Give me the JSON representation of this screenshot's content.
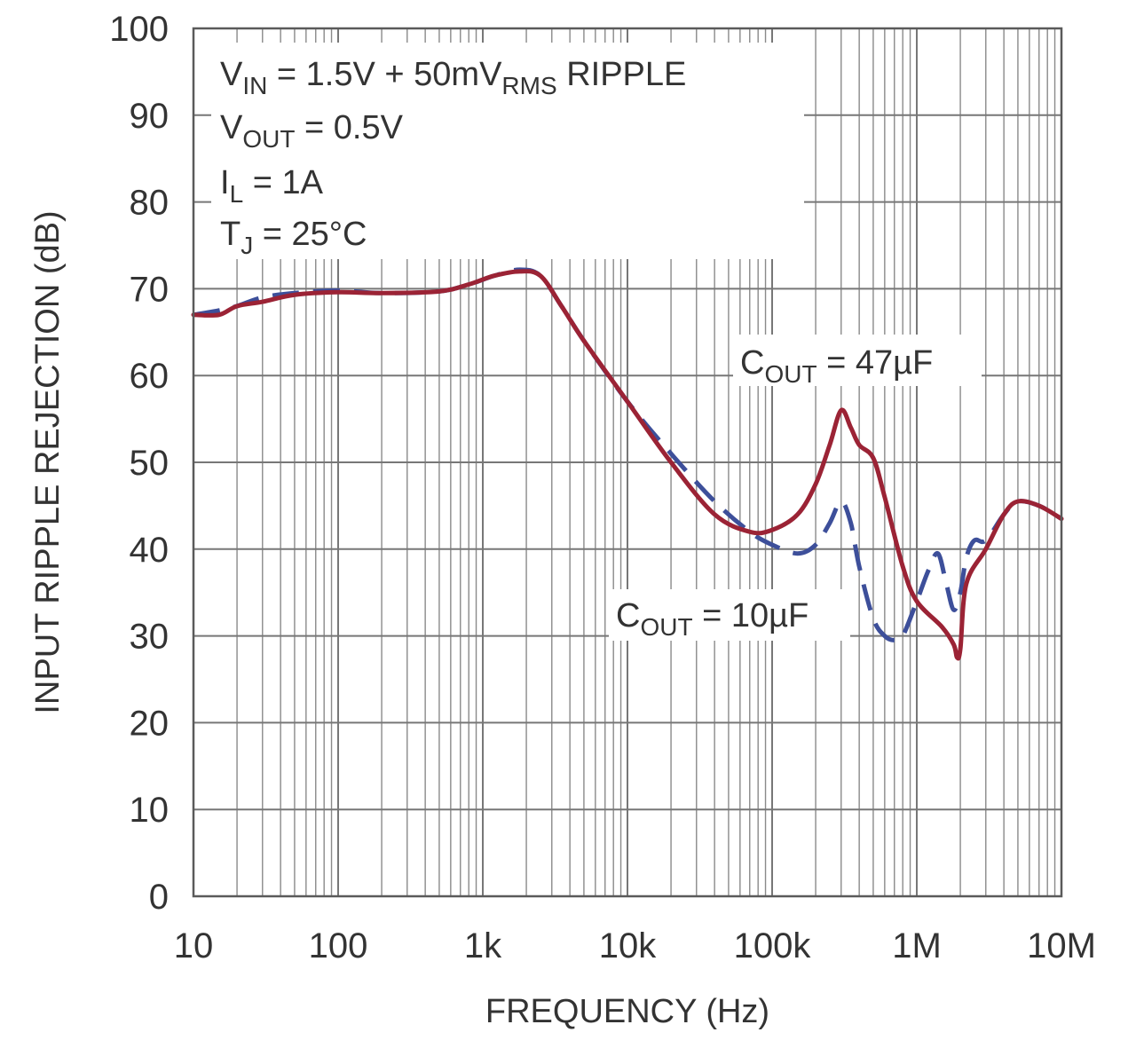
{
  "chart_data": {
    "type": "line",
    "xlabel": "FREQUENCY (Hz)",
    "ylabel": "INPUT RIPPLE REJECTION (dB)",
    "x_scale": "log",
    "xlim": [
      10,
      10000000
    ],
    "ylim": [
      0,
      100
    ],
    "grid": true,
    "x_ticks": [
      {
        "value": 10,
        "label": "10"
      },
      {
        "value": 100,
        "label": "100"
      },
      {
        "value": 1000,
        "label": "1k"
      },
      {
        "value": 10000,
        "label": "10k"
      },
      {
        "value": 100000,
        "label": "100k"
      },
      {
        "value": 1000000,
        "label": "1M"
      },
      {
        "value": 10000000,
        "label": "10M"
      }
    ],
    "y_ticks": [
      {
        "value": 0,
        "label": "0"
      },
      {
        "value": 10,
        "label": "10"
      },
      {
        "value": 20,
        "label": "20"
      },
      {
        "value": 30,
        "label": "30"
      },
      {
        "value": 40,
        "label": "40"
      },
      {
        "value": 50,
        "label": "50"
      },
      {
        "value": 60,
        "label": "60"
      },
      {
        "value": 70,
        "label": "70"
      },
      {
        "value": 80,
        "label": "80"
      },
      {
        "value": 90,
        "label": "90"
      },
      {
        "value": 100,
        "label": "100"
      }
    ],
    "conditions": [
      {
        "main": "V",
        "sub": "IN",
        "rest": " = 1.5V + 50mV",
        "sub2": "RMS",
        "rest2": " RIPPLE"
      },
      {
        "main": "V",
        "sub": "OUT",
        "rest": " = 0.5V"
      },
      {
        "main": "I",
        "sub": "L",
        "rest": " = 1A"
      },
      {
        "main": "T",
        "sub": "J",
        "rest": " = 25°C"
      }
    ],
    "annotations": [
      {
        "main": "C",
        "sub": "OUT",
        "rest": " = 47µF"
      },
      {
        "main": "C",
        "sub": "OUT",
        "rest": " = 10µF"
      }
    ],
    "series": [
      {
        "style": "solid",
        "color": "#9b2335",
        "x": [
          10,
          15,
          20,
          30,
          50,
          100,
          200,
          500,
          800,
          1200,
          1800,
          2500,
          3500,
          5000,
          10000,
          20000,
          40000,
          70000,
          100000,
          150000,
          200000,
          250000,
          300000,
          350000,
          400000,
          500000,
          600000,
          800000,
          1000000,
          1500000,
          1800000,
          1900000,
          2000000,
          2200000,
          3000000,
          4000000,
          5000000,
          7000000,
          10000000
        ],
        "y": [
          67,
          67,
          68,
          68.5,
          69.3,
          69.6,
          69.5,
          69.7,
          70.5,
          71.5,
          72,
          71.5,
          68,
          64,
          57,
          50,
          44,
          42,
          42.2,
          44,
          47.5,
          52,
          56,
          54,
          52,
          50.5,
          46,
          38,
          34,
          31,
          29,
          27.5,
          28.5,
          36,
          40,
          44,
          45.5,
          45,
          43.5
        ]
      },
      {
        "style": "dashed",
        "color": "#3d4f9a",
        "x": [
          10,
          15,
          20,
          30,
          50,
          100,
          200,
          500,
          800,
          1200,
          1800,
          2500,
          3500,
          5000,
          10000,
          20000,
          40000,
          70000,
          100000,
          150000,
          200000,
          250000,
          300000,
          350000,
          400000,
          500000,
          600000,
          700000,
          800000,
          1000000,
          1200000,
          1400000,
          1600000,
          1800000,
          2000000,
          2200000,
          2500000,
          3000000,
          4000000,
          5000000,
          7000000,
          10000000
        ],
        "y": [
          67,
          67.5,
          68,
          69,
          69.5,
          69.8,
          69.5,
          69.7,
          70.5,
          71.5,
          72.2,
          71.5,
          68,
          64,
          57,
          51,
          45.5,
          42,
          40.5,
          39.5,
          40.5,
          43,
          45.5,
          43,
          38,
          32,
          30,
          29.5,
          30,
          34,
          37.5,
          39.5,
          36,
          33,
          35,
          39,
          41,
          41,
          44,
          45.5,
          45,
          43.5
        ]
      }
    ]
  }
}
